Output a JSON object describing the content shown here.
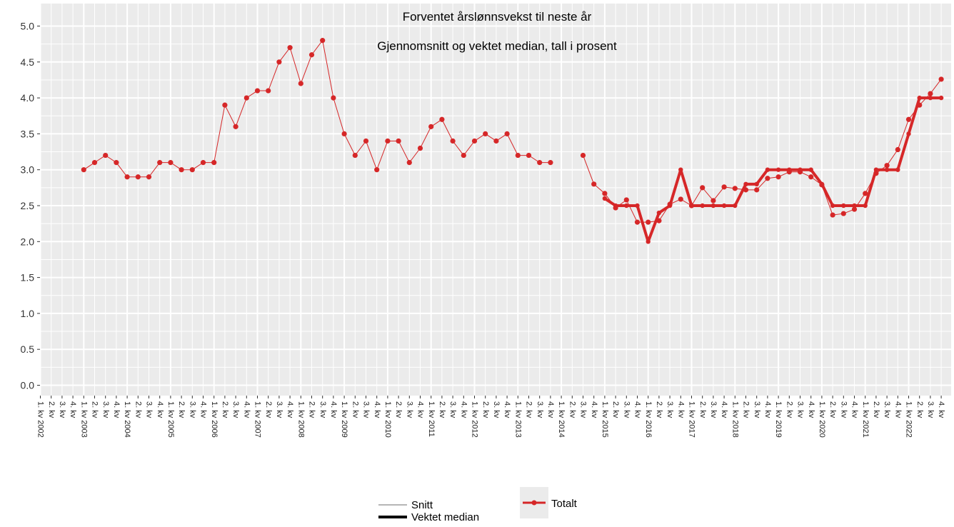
{
  "chart_data": {
    "type": "line",
    "title": "Forventet årslønnsvekst til neste år",
    "subtitle": "Gjennomsnitt og vektet median, tall i prosent",
    "xlabel": "",
    "ylabel": "",
    "ylim": [
      0,
      5.2
    ],
    "yticks": [
      "0.0",
      "0.5",
      "1.0",
      "1.5",
      "2.0",
      "2.5",
      "3.0",
      "3.5",
      "4.0",
      "4.5",
      "5.0"
    ],
    "grid": true,
    "legend": {
      "linetype_items": [
        "Snitt",
        "Vektet median"
      ],
      "color_items": [
        "Totalt"
      ],
      "placement": "bottom"
    },
    "colors": {
      "series": "#d62728",
      "panel": "#ebebeb",
      "grid": "#ffffff",
      "legend_line": "#000000"
    },
    "categories": [
      "1. kv 2002",
      "2. kv",
      "3. kv",
      "4. kv",
      "1. kv 2003",
      "2. kv",
      "3. kv",
      "4. kv",
      "1. kv 2004",
      "2. kv",
      "3. kv",
      "4. kv",
      "1. kv 2005",
      "2. kv",
      "3. kv",
      "4. kv",
      "1. kv 2006",
      "2. kv",
      "3. kv",
      "4. kv",
      "1. kv 2007",
      "2. kv",
      "3. kv",
      "4. kv",
      "1. kv 2008",
      "2. kv",
      "3. kv",
      "4. kv",
      "1. kv 2009",
      "2. kv",
      "3. kv",
      "4. kv",
      "1. kv 2010",
      "2. kv",
      "3. kv",
      "4. kv",
      "1. kv 2011",
      "2. kv",
      "3. kv",
      "4. kv",
      "1. kv 2012",
      "2. kv",
      "3. kv",
      "4. kv",
      "1. kv 2013",
      "2. kv",
      "3. kv",
      "4. kv",
      "1. kv 2014",
      "2. kv",
      "3. kv",
      "4. kv",
      "1. kv 2015",
      "2. kv",
      "3. kv",
      "4. kv",
      "1. kv 2016",
      "2. kv",
      "3. kv",
      "4. kv",
      "1. kv 2017",
      "2. kv",
      "3. kv",
      "4. kv",
      "1. kv 2018",
      "2. kv",
      "3. kv",
      "4. kv",
      "1. kv 2019",
      "2. kv",
      "3. kv",
      "4. kv",
      "1. kv 2020",
      "2. kv",
      "3. kv",
      "4. kv",
      "1. kv 2021",
      "2. kv",
      "3. kv",
      "4. kv",
      "1. kv 2022",
      "2. kv",
      "3. kv",
      "4. kv"
    ],
    "series": [
      {
        "name": "Snitt",
        "color_group": "Totalt",
        "values": [
          null,
          null,
          null,
          null,
          3.0,
          3.1,
          3.2,
          3.1,
          2.9,
          2.9,
          2.9,
          3.1,
          3.1,
          3.0,
          3.0,
          3.1,
          3.1,
          3.9,
          3.6,
          4.0,
          4.1,
          4.1,
          4.5,
          4.7,
          4.2,
          4.6,
          4.8,
          4.0,
          3.5,
          3.2,
          3.4,
          3.0,
          3.4,
          3.4,
          3.1,
          3.3,
          3.6,
          3.7,
          3.4,
          3.2,
          3.4,
          3.5,
          3.4,
          3.5,
          3.2,
          3.2,
          3.1,
          3.1,
          null,
          null,
          3.2,
          2.8,
          2.67,
          2.47,
          2.58,
          2.27,
          2.27,
          2.29,
          2.52,
          2.59,
          2.5,
          2.75,
          2.57,
          2.76,
          2.74,
          2.72,
          2.72,
          2.88,
          2.9,
          2.97,
          2.97,
          2.9,
          2.79,
          2.37,
          2.39,
          2.45,
          2.67,
          2.95,
          3.06,
          3.28,
          3.7,
          3.9,
          4.06,
          4.26
        ]
      },
      {
        "name": "Vektet median",
        "color_group": "Totalt",
        "values": [
          null,
          null,
          null,
          null,
          null,
          null,
          null,
          null,
          null,
          null,
          null,
          null,
          null,
          null,
          null,
          null,
          null,
          null,
          null,
          null,
          null,
          null,
          null,
          null,
          null,
          null,
          null,
          null,
          null,
          null,
          null,
          null,
          null,
          null,
          null,
          null,
          null,
          null,
          null,
          null,
          null,
          null,
          null,
          null,
          null,
          null,
          null,
          null,
          null,
          null,
          null,
          null,
          2.6,
          2.5,
          2.5,
          2.5,
          2.0,
          2.4,
          2.5,
          3.0,
          2.5,
          2.5,
          2.5,
          2.5,
          2.5,
          2.8,
          2.8,
          3.0,
          3.0,
          3.0,
          3.0,
          3.0,
          2.8,
          2.5,
          2.5,
          2.5,
          2.5,
          3.0,
          3.0,
          3.0,
          3.5,
          4.0,
          4.0,
          4.0
        ]
      }
    ]
  }
}
